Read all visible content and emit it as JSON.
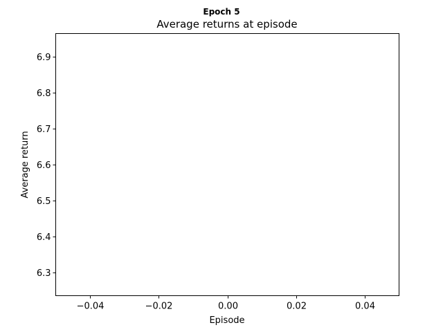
{
  "chart_data": {
    "type": "line",
    "suptitle": "Epoch 5",
    "title": "Average returns at episode",
    "xlabel": "Episode",
    "ylabel": "Average return",
    "xlim": [
      -0.05,
      0.05
    ],
    "ylim": [
      6.235,
      6.965
    ],
    "xticks": [
      -0.04,
      -0.02,
      0.0,
      0.02,
      0.04
    ],
    "xtick_labels": [
      "−0.04",
      "−0.02",
      "0.00",
      "0.02",
      "0.04"
    ],
    "yticks": [
      6.3,
      6.4,
      6.5,
      6.6,
      6.7,
      6.8,
      6.9
    ],
    "ytick_labels": [
      "6.3",
      "6.4",
      "6.5",
      "6.6",
      "6.7",
      "6.8",
      "6.9"
    ],
    "series": [
      {
        "x": [],
        "y": [],
        "color": "#1f77b4"
      }
    ],
    "grid": false,
    "legend": false
  }
}
